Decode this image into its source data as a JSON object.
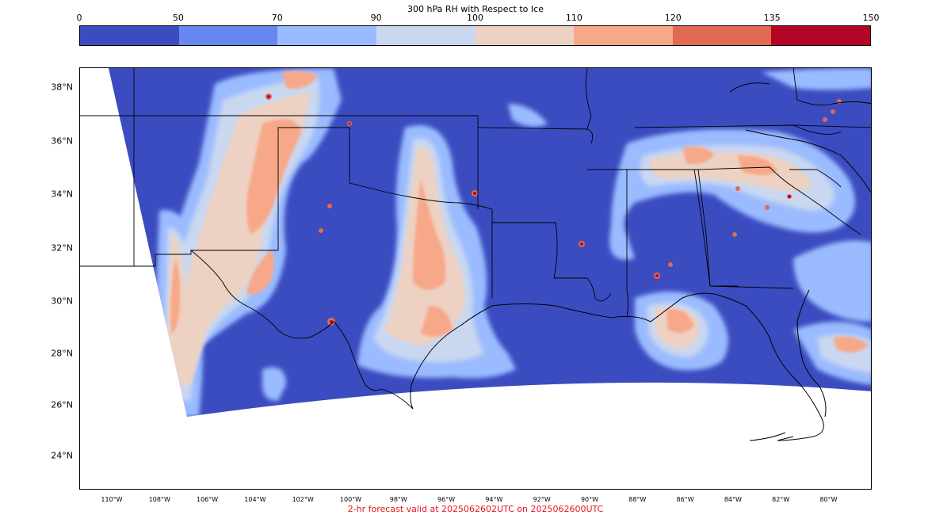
{
  "colorbar": {
    "title": "300 hPa RH with Respect to Ice",
    "ticks": [
      "0",
      "50",
      "70",
      "90",
      "100",
      "110",
      "120",
      "135",
      "150"
    ],
    "colors": [
      "#3b4cc0",
      "#6788ee",
      "#9abbff",
      "#c9d7f0",
      "#edd1c2",
      "#f7a889",
      "#e26952",
      "#b40426"
    ]
  },
  "map": {
    "lat_labels": [
      "38°N",
      "36°N",
      "34°N",
      "32°N",
      "30°N",
      "28°N",
      "26°N",
      "24°N"
    ],
    "lon_labels": [
      "110°W",
      "108°W",
      "106°W",
      "104°W",
      "102°W",
      "100°W",
      "98°W",
      "96°W",
      "94°W",
      "92°W",
      "90°W",
      "88°W",
      "86°W",
      "84°W",
      "82°W",
      "80°W"
    ],
    "background_color": "#3b4cc0"
  },
  "footer": {
    "text": "2-hr forecast valid at 2025062602UTC on 2025062600UTC"
  }
}
